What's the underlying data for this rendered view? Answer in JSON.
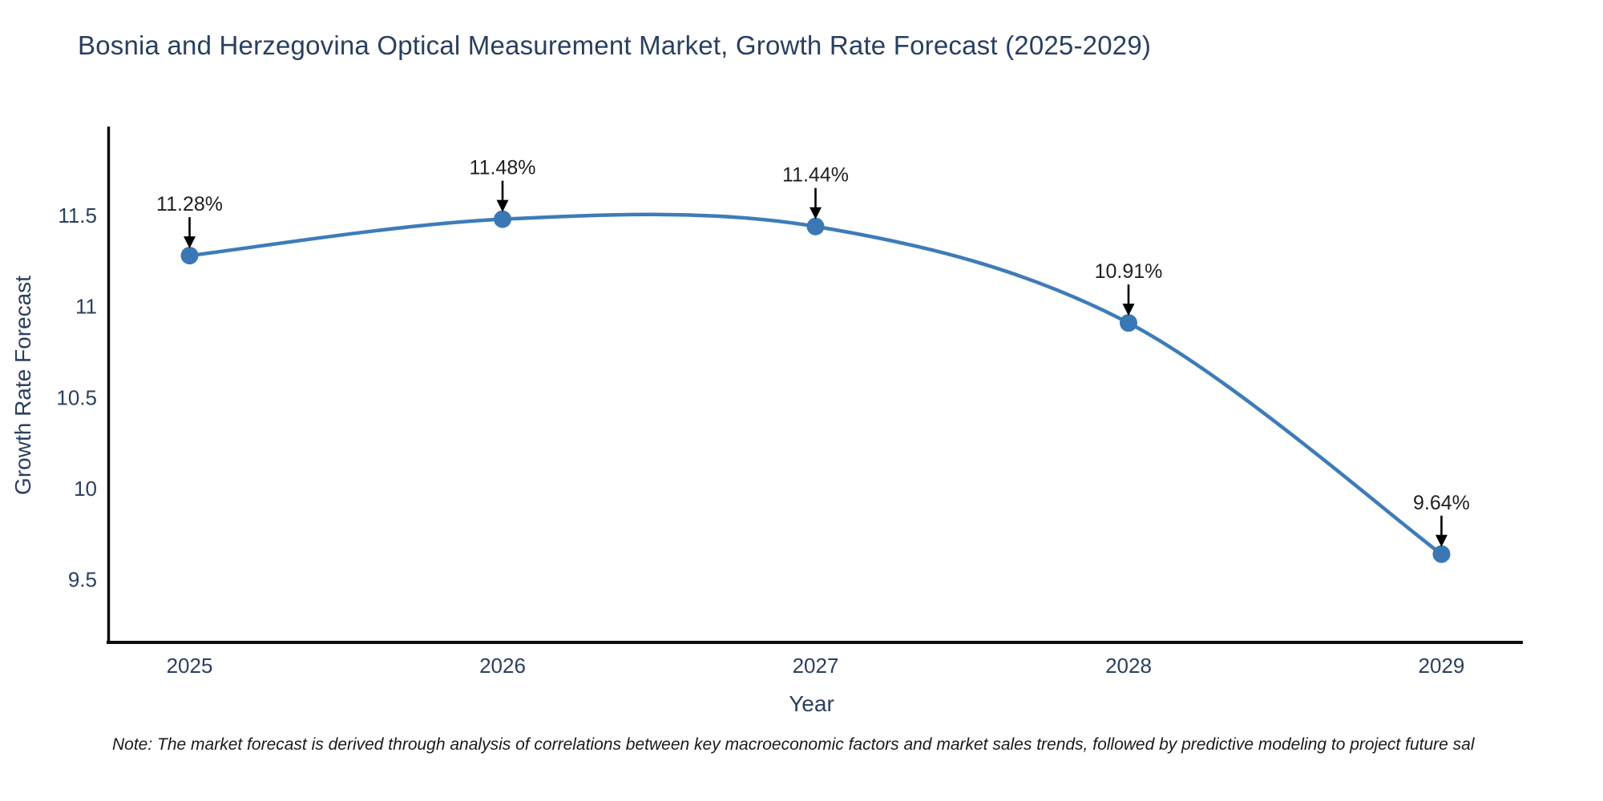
{
  "title": "Bosnia and Herzegovina Optical Measurement Market, Growth Rate Forecast (2025-2029)",
  "note": "Note: The market forecast is derived through analysis of correlations between key macroeconomic factors and market sales trends, followed by predictive modeling to project future sal",
  "chart_data": {
    "type": "line",
    "title": "Bosnia and Herzegovina Optical Measurement Market, Growth Rate Forecast (2025-2029)",
    "xlabel": "Year",
    "ylabel": "Growth Rate Forecast",
    "categories": [
      2025,
      2026,
      2027,
      2028,
      2029
    ],
    "values": [
      11.28,
      11.48,
      11.44,
      10.91,
      9.64
    ],
    "point_labels": [
      "11.28%",
      "11.48%",
      "11.44%",
      "10.91%",
      "9.64%"
    ],
    "x_tick_labels": [
      "2025",
      "2026",
      "2027",
      "2028",
      "2029"
    ],
    "y_tick_values": [
      9.5,
      10,
      10.5,
      11,
      11.5
    ],
    "y_tick_labels": [
      "9.5",
      "10",
      "10.5",
      "11",
      "11.5"
    ],
    "x_range": [
      2024.74,
      2029.26
    ],
    "y_range": [
      9.155,
      11.98
    ],
    "line_shape": "spline",
    "grid": false,
    "legend": "none",
    "annotations_arrow": "down",
    "colors": {
      "line": "#3d7cb8",
      "marker": "#3a78b5",
      "axis_line": "#0d0d0d",
      "title_text": "#2a3f5f",
      "axis_title_text": "#2a3f5f",
      "tick_text": "#2a3f5f",
      "annotation_text": "#1f1f1f",
      "arrow": "#000000",
      "background": "#ffffff"
    }
  }
}
